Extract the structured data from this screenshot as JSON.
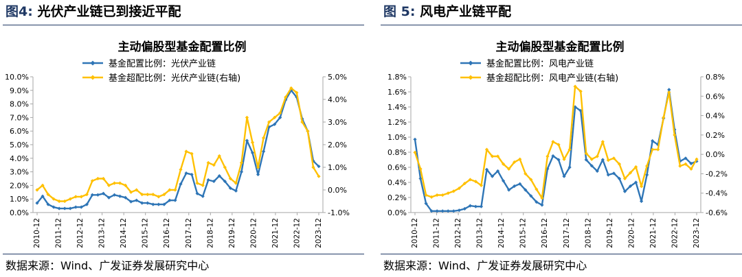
{
  "colors": {
    "blue": "#2e75b6",
    "gold": "#ffc000",
    "header": "#1f3864"
  },
  "chart_data": [
    {
      "type": "line",
      "figure_label": "图4:",
      "figure_title": "光伏产业链已到接近平配",
      "title": "主动偏股型基金配置比例",
      "source": "数据来源：Wind、广发证券发展研究中心",
      "x_labels": [
        "2010-12",
        "2011-12",
        "2012-12",
        "2013-12",
        "2014-12",
        "2015-12",
        "2016-12",
        "2017-12",
        "2018-12",
        "2019-12",
        "2020-12",
        "2021-12",
        "2022-12",
        "2023-12"
      ],
      "y_left": {
        "ticks": [
          "0.0%",
          "1.0%",
          "2.0%",
          "3.0%",
          "4.0%",
          "5.0%",
          "6.0%",
          "7.0%",
          "8.0%",
          "9.0%",
          "10.0%"
        ],
        "range": [
          0,
          10
        ]
      },
      "y_right": {
        "ticks": [
          "-1.0%",
          "0.0%",
          "1.0%",
          "2.0%",
          "3.0%",
          "4.0%",
          "5.0%"
        ],
        "range": [
          -1,
          5
        ]
      },
      "series": [
        {
          "name": "基金配置比例：光伏产业链",
          "axis": "left",
          "color": "#2e75b6",
          "values": [
            0.7,
            1.2,
            0.6,
            0.4,
            0.3,
            0.3,
            0.3,
            0.4,
            0.4,
            0.6,
            1.3,
            1.3,
            1.4,
            1.1,
            1.3,
            1.2,
            1.1,
            0.8,
            0.9,
            0.7,
            0.7,
            0.6,
            0.6,
            0.6,
            0.9,
            0.9,
            2.1,
            2.9,
            2.8,
            1.4,
            1.2,
            2.4,
            2.3,
            2.7,
            2.3,
            1.8,
            1.6,
            3.0,
            5.3,
            4.4,
            2.8,
            4.5,
            6.3,
            6.5,
            7.0,
            8.3,
            9.0,
            8.5,
            6.9,
            6.0,
            3.8,
            3.4
          ]
        },
        {
          "name": "基金超配比例：光伏产业链(右轴)",
          "axis": "right",
          "color": "#ffc000",
          "values": [
            0.0,
            0.2,
            -0.2,
            -0.4,
            -0.5,
            -0.5,
            -0.4,
            -0.3,
            -0.3,
            -0.2,
            0.4,
            0.5,
            0.5,
            0.2,
            0.3,
            0.3,
            0.2,
            -0.1,
            0.0,
            -0.2,
            -0.2,
            -0.2,
            -0.3,
            -0.2,
            0.0,
            0.0,
            0.9,
            1.7,
            1.6,
            0.3,
            0.2,
            1.2,
            1.1,
            1.5,
            1.0,
            0.5,
            0.3,
            1.2,
            3.2,
            2.1,
            1.0,
            2.3,
            3.0,
            3.2,
            3.4,
            4.1,
            4.5,
            4.3,
            3.0,
            2.6,
            1.0,
            0.6
          ]
        }
      ]
    },
    {
      "type": "line",
      "figure_label": "图 5:",
      "figure_title": "风电产业链平配",
      "title": "主动偏股型基金配置比例",
      "source": "数据来源：Wind、广发证券发展研究中心",
      "x_labels": [
        "2010-12",
        "2011-12",
        "2012-12",
        "2013-12",
        "2014-12",
        "2015-12",
        "2016-12",
        "2017-12",
        "2018-12",
        "2019-12",
        "2020-12",
        "2021-12",
        "2022-12",
        "2023-12"
      ],
      "y_left": {
        "ticks": [
          "0.0%",
          "0.2%",
          "0.4%",
          "0.6%",
          "0.8%",
          "1.0%",
          "1.2%",
          "1.4%",
          "1.6%",
          "1.8%"
        ],
        "range": [
          0,
          1.8
        ]
      },
      "y_right": {
        "ticks": [
          "-0.6%",
          "-0.4%",
          "-0.2%",
          "0.0%",
          "0.2%",
          "0.4%",
          "0.6%",
          "0.8%"
        ],
        "range": [
          -0.6,
          0.8
        ]
      },
      "series": [
        {
          "name": "基金配置比例：风电产业链",
          "axis": "left",
          "color": "#2e75b6",
          "values": [
            0.97,
            0.45,
            0.12,
            0.02,
            0.02,
            0.02,
            0.02,
            0.02,
            0.03,
            0.05,
            0.09,
            0.08,
            0.08,
            0.57,
            0.48,
            0.55,
            0.42,
            0.3,
            0.35,
            0.38,
            0.3,
            0.22,
            0.14,
            0.1,
            0.58,
            0.75,
            0.7,
            0.48,
            0.6,
            1.4,
            1.35,
            0.7,
            0.62,
            0.55,
            0.7,
            0.5,
            0.52,
            0.45,
            0.28,
            0.35,
            0.4,
            0.15,
            0.5,
            0.95,
            0.9,
            1.25,
            1.63,
            1.1,
            0.68,
            0.72,
            0.65,
            0.68
          ]
        },
        {
          "name": "基金超配比例：风电产业链(右轴)",
          "axis": "right",
          "color": "#ffc000",
          "values": [
            0.02,
            -0.15,
            -0.42,
            -0.44,
            -0.42,
            -0.42,
            -0.4,
            -0.38,
            -0.35,
            -0.3,
            -0.26,
            -0.28,
            -0.32,
            0.05,
            -0.02,
            -0.02,
            -0.1,
            -0.15,
            -0.08,
            -0.05,
            -0.2,
            -0.26,
            -0.36,
            -0.45,
            -0.02,
            0.13,
            0.1,
            -0.05,
            0.05,
            0.7,
            0.65,
            0.01,
            -0.05,
            -0.02,
            0.13,
            -0.06,
            -0.04,
            -0.1,
            -0.25,
            -0.19,
            -0.13,
            -0.33,
            -0.12,
            0.05,
            0.05,
            0.38,
            0.64,
            0.2,
            -0.12,
            -0.1,
            -0.15,
            -0.05
          ]
        }
      ]
    }
  ]
}
